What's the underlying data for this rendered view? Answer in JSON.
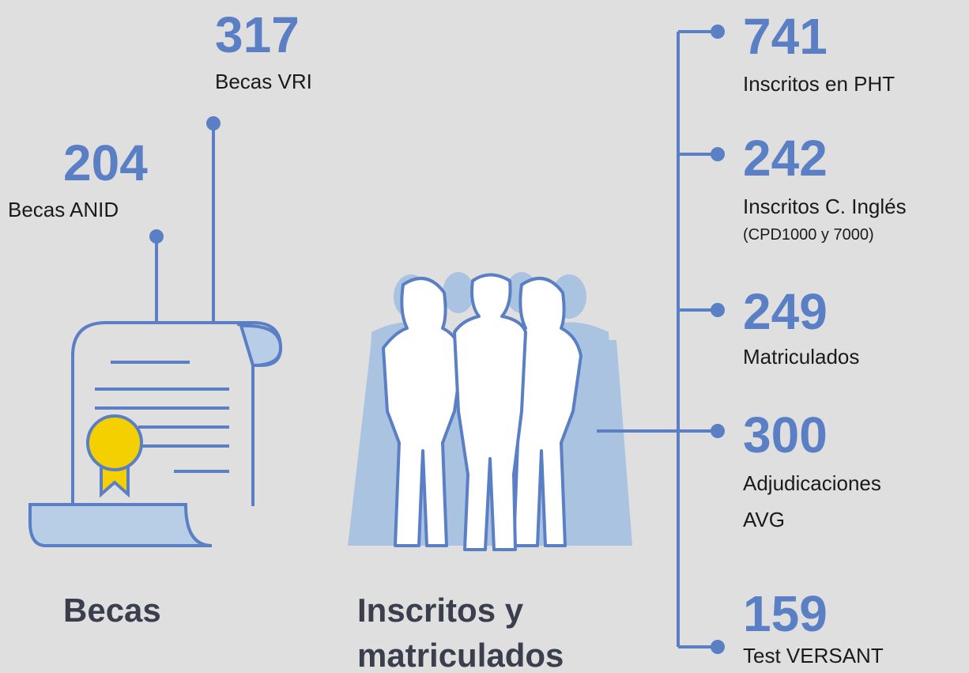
{
  "becas": {
    "title": "Becas",
    "items": [
      {
        "value": 317,
        "label": "Becas VRI"
      },
      {
        "value": 204,
        "label": "Becas ANID"
      }
    ]
  },
  "inscritos": {
    "title_lines": [
      "Inscritos y",
      "matriculados"
    ],
    "items": [
      {
        "value": 741,
        "label_lines": [
          "Inscritos en PHT"
        ]
      },
      {
        "value": 242,
        "label_lines": [
          "Inscritos C. Inglés"
        ],
        "note": "(CPD1000 y 7000)"
      },
      {
        "value": 249,
        "label_lines": [
          "Matriculados"
        ]
      },
      {
        "value": 300,
        "label_lines": [
          "Adjudicaciones",
          "AVG"
        ]
      },
      {
        "value": 159,
        "label_lines": [
          "Test VERSANT"
        ]
      }
    ]
  }
}
